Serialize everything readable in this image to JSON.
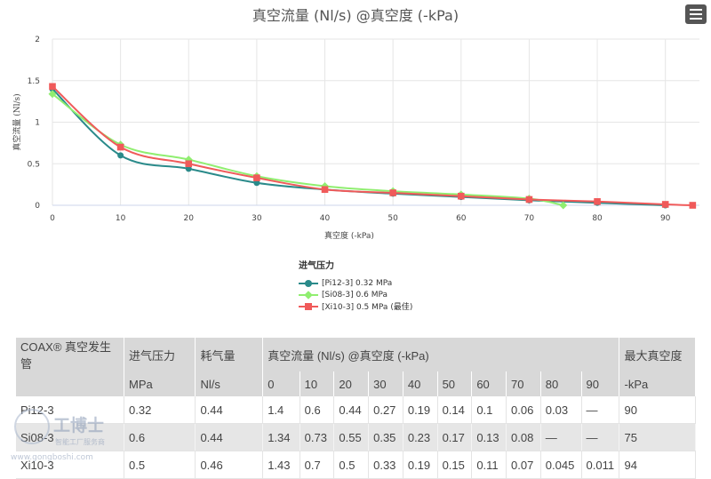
{
  "chart_data": {
    "type": "line",
    "title": "真空流量 (Nl/s) @真空度 (-kPa)",
    "xlabel": "真空度 (-kPa)",
    "ylabel": "真空流量 (Nl/s)",
    "xlim": [
      0,
      95
    ],
    "ylim": [
      0,
      2
    ],
    "xticks": [
      0,
      10,
      20,
      30,
      40,
      50,
      60,
      70,
      80,
      90
    ],
    "yticks": [
      0,
      0.5,
      1,
      1.5,
      2
    ],
    "grid": true,
    "legend_title": "进气压力",
    "legend_position": "bottom",
    "series": [
      {
        "name": "[Pi12-3] 0.32 MPa",
        "color": "#2a8a8a",
        "marker": "circle",
        "x": [
          0,
          10,
          20,
          30,
          40,
          50,
          60,
          70,
          80,
          90
        ],
        "y": [
          1.4,
          0.6,
          0.44,
          0.27,
          0.19,
          0.14,
          0.1,
          0.06,
          0.03,
          0
        ]
      },
      {
        "name": "[Si08-3] 0.6 MPa",
        "color": "#90ee70",
        "marker": "diamond",
        "x": [
          0,
          10,
          20,
          30,
          40,
          50,
          60,
          70,
          75
        ],
        "y": [
          1.34,
          0.73,
          0.55,
          0.35,
          0.23,
          0.17,
          0.13,
          0.08,
          0
        ]
      },
      {
        "name": "[Xi10-3] 0.5 MPa (最佳)",
        "color": "#f05a5a",
        "marker": "square",
        "x": [
          0,
          10,
          20,
          30,
          40,
          50,
          60,
          70,
          80,
          90,
          94
        ],
        "y": [
          1.43,
          0.7,
          0.5,
          0.33,
          0.19,
          0.15,
          0.11,
          0.07,
          0.045,
          0.011,
          0
        ]
      }
    ]
  },
  "table": {
    "header1": [
      "COAX® 真空发生管",
      "进气压力",
      "耗气量",
      "真空流量 (Nl/s) @真空度 (-kPa)",
      "最大真空度"
    ],
    "header2": [
      "",
      "MPa",
      "Nl/s",
      "0",
      "10",
      "20",
      "30",
      "40",
      "50",
      "60",
      "70",
      "80",
      "90",
      "-kPa"
    ],
    "rows": [
      [
        "Pi12-3",
        "0.32",
        "0.44",
        "1.4",
        "0.6",
        "0.44",
        "0.27",
        "0.19",
        "0.14",
        "0.1",
        "0.06",
        "0.03",
        "—",
        "90"
      ],
      [
        "Si08-3",
        "0.6",
        "0.44",
        "1.34",
        "0.73",
        "0.55",
        "0.35",
        "0.23",
        "0.17",
        "0.13",
        "0.08",
        "—",
        "—",
        "75"
      ],
      [
        "Xi10-3",
        "0.5",
        "0.46",
        "1.43",
        "0.7",
        "0.5",
        "0.33",
        "0.19",
        "0.15",
        "0.11",
        "0.07",
        "0.045",
        "0.011",
        "94"
      ]
    ]
  },
  "watermark": {
    "brand": "工博士",
    "slogan": "智能工厂服务商",
    "url": "www.gongboshi.com"
  },
  "menu": {
    "icon": "hamburger-menu-icon"
  }
}
